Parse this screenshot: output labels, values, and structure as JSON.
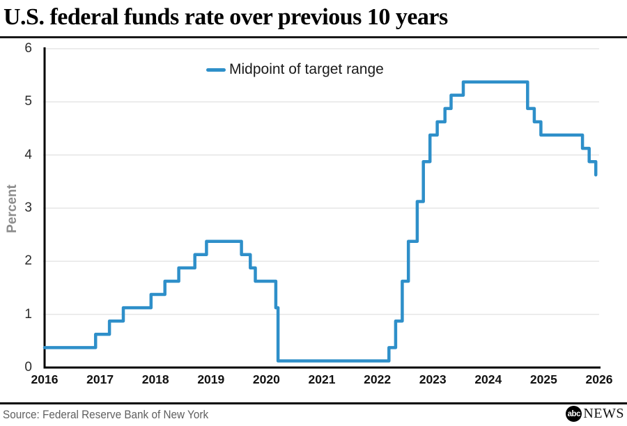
{
  "header": {
    "title": "U.S. federal funds rate over previous 10 years"
  },
  "chart_data": {
    "type": "line",
    "style": "step-after",
    "title": "U.S. federal funds rate over previous 10 years",
    "xlabel": "",
    "ylabel": "Percent",
    "xlim": [
      2016,
      2026
    ],
    "ylim": [
      0,
      6
    ],
    "x_ticks": [
      "2016",
      "2017",
      "2018",
      "2019",
      "2020",
      "2021",
      "2022",
      "2023",
      "2024",
      "2025",
      "2026"
    ],
    "y_ticks": [
      0,
      1,
      2,
      3,
      4,
      5,
      6
    ],
    "grid": true,
    "legend_position": "top-center",
    "line_color": "#2E8FC9",
    "grid_color": "#e5e5e5",
    "axis_color": "#000000",
    "series": [
      {
        "name": "Midpoint of target range",
        "color": "#2E8FC9",
        "points_note": "decimal year vs percent, step chart",
        "points": [
          [
            2016.0,
            0.375
          ],
          [
            2016.92,
            0.625
          ],
          [
            2017.17,
            0.875
          ],
          [
            2017.42,
            1.125
          ],
          [
            2017.92,
            1.375
          ],
          [
            2018.17,
            1.625
          ],
          [
            2018.42,
            1.875
          ],
          [
            2018.71,
            2.125
          ],
          [
            2018.92,
            2.375
          ],
          [
            2019.55,
            2.125
          ],
          [
            2019.71,
            1.875
          ],
          [
            2019.8,
            1.625
          ],
          [
            2020.17,
            1.125
          ],
          [
            2020.21,
            0.125
          ],
          [
            2022.21,
            0.375
          ],
          [
            2022.33,
            0.875
          ],
          [
            2022.45,
            1.625
          ],
          [
            2022.56,
            2.375
          ],
          [
            2022.72,
            3.125
          ],
          [
            2022.83,
            3.875
          ],
          [
            2022.95,
            4.375
          ],
          [
            2023.08,
            4.625
          ],
          [
            2023.22,
            4.875
          ],
          [
            2023.33,
            5.125
          ],
          [
            2023.55,
            5.375
          ],
          [
            2024.71,
            4.875
          ],
          [
            2024.83,
            4.625
          ],
          [
            2024.95,
            4.375
          ],
          [
            2025.7,
            4.125
          ],
          [
            2025.82,
            3.875
          ],
          [
            2025.94,
            3.625
          ]
        ]
      }
    ]
  },
  "footer": {
    "source": "Source: Federal Reserve Bank of New York",
    "logo": {
      "circle_text": "abc",
      "news_text": "NEWS"
    }
  }
}
